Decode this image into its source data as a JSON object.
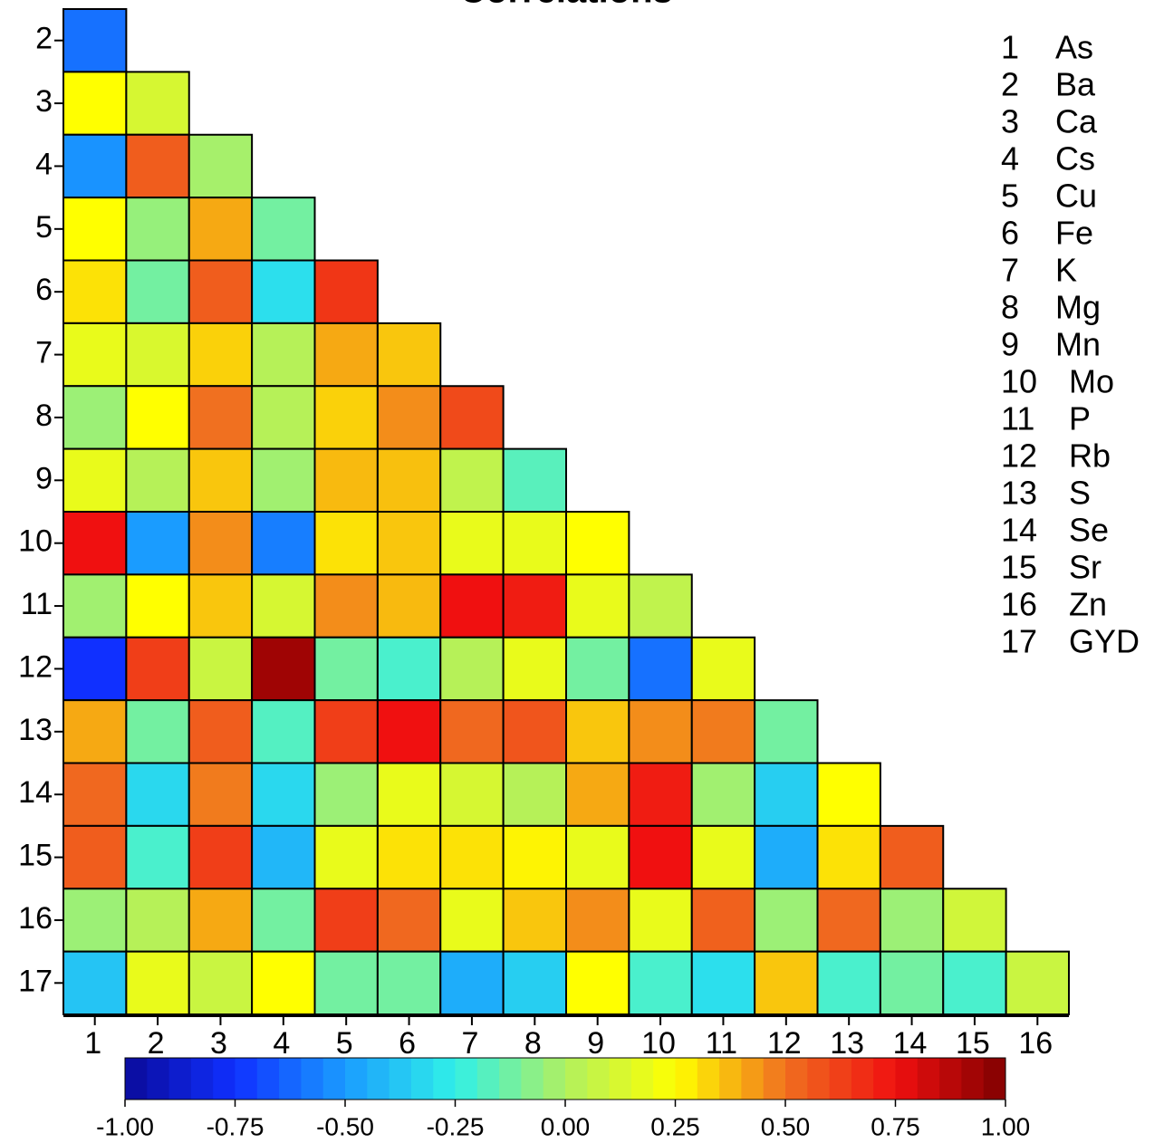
{
  "chart_data": {
    "type": "heatmap",
    "title": "Correlations",
    "row_labels": [
      "2",
      "3",
      "4",
      "5",
      "6",
      "7",
      "8",
      "9",
      "10",
      "11",
      "12",
      "13",
      "14",
      "15",
      "16",
      "17"
    ],
    "col_labels": [
      "1",
      "2",
      "3",
      "4",
      "5",
      "6",
      "7",
      "8",
      "9",
      "10",
      "11",
      "12",
      "13",
      "14",
      "15",
      "16"
    ],
    "values": [
      [
        -0.6
      ],
      [
        0.25,
        0.12
      ],
      [
        -0.52,
        0.55,
        -0.02
      ],
      [
        0.25,
        -0.05,
        0.4,
        -0.12
      ],
      [
        0.3,
        -0.12,
        0.55,
        -0.3,
        0.65
      ],
      [
        0.18,
        0.13,
        0.33,
        0.02,
        0.4,
        0.35
      ],
      [
        -0.04,
        0.25,
        0.5,
        0.02,
        0.33,
        0.45,
        0.6
      ],
      [
        0.18,
        0.02,
        0.35,
        -0.03,
        0.37,
        0.36,
        0.05,
        -0.17
      ],
      [
        0.75,
        -0.5,
        0.45,
        -0.57,
        0.3,
        0.35,
        0.18,
        0.18,
        0.25
      ],
      [
        -0.03,
        0.25,
        0.35,
        0.12,
        0.45,
        0.37,
        0.75,
        0.72,
        0.18,
        0.05
      ],
      [
        -0.75,
        0.63,
        0.08,
        0.93,
        -0.12,
        -0.2,
        0.02,
        0.18,
        -0.12,
        -0.6,
        0.18
      ],
      [
        0.4,
        -0.12,
        0.55,
        -0.18,
        0.63,
        0.75,
        0.52,
        0.57,
        0.35,
        0.45,
        0.48,
        -0.12
      ],
      [
        0.52,
        -0.32,
        0.48,
        -0.32,
        -0.04,
        0.18,
        0.12,
        0.02,
        0.4,
        0.72,
        -0.03,
        -0.35,
        0.25
      ],
      [
        0.55,
        -0.2,
        0.63,
        -0.42,
        0.18,
        0.3,
        0.3,
        0.27,
        0.18,
        0.75,
        0.18,
        -0.45,
        0.3,
        0.55
      ],
      [
        -0.04,
        0.02,
        0.4,
        -0.12,
        0.63,
        0.52,
        0.18,
        0.35,
        0.45,
        0.18,
        0.54,
        -0.04,
        0.52,
        -0.04,
        0.1
      ],
      [
        -0.38,
        0.18,
        0.08,
        0.25,
        -0.12,
        -0.12,
        -0.45,
        -0.35,
        0.25,
        -0.2,
        -0.3,
        0.35,
        -0.2,
        -0.12,
        -0.2,
        0.08
      ]
    ],
    "zlim": [
      -1,
      1
    ],
    "colors": [
      "#0a0a9a",
      "#1030ff",
      "#1a9cff",
      "#30f0e8",
      "#b0f060",
      "#ffff00",
      "#f07020",
      "#f01010",
      "#800000"
    ],
    "zticks": [
      {
        "value": -1,
        "label": "-1.00"
      },
      {
        "value": -0.75,
        "label": "-0.75"
      },
      {
        "value": -0.5,
        "label": "-0.50"
      },
      {
        "value": -0.25,
        "label": "-0.25"
      },
      {
        "value": 0,
        "label": "0.00"
      },
      {
        "value": 0.25,
        "label": "0.25"
      },
      {
        "value": 0.5,
        "label": "0.50"
      },
      {
        "value": 0.75,
        "label": "0.75"
      },
      {
        "value": 1,
        "label": "1.00"
      }
    ],
    "legend": [
      {
        "number": "1",
        "name": "As"
      },
      {
        "number": "2",
        "name": "Ba"
      },
      {
        "number": "3",
        "name": "Ca"
      },
      {
        "number": "4",
        "name": "Cs"
      },
      {
        "number": "5",
        "name": "Cu"
      },
      {
        "number": "6",
        "name": "Fe"
      },
      {
        "number": "7",
        "name": "K"
      },
      {
        "number": "8",
        "name": "Mg"
      },
      {
        "number": "9",
        "name": "Mn"
      },
      {
        "number": "10",
        "name": "Mo"
      },
      {
        "number": "11",
        "name": "P"
      },
      {
        "number": "12",
        "name": "Rb"
      },
      {
        "number": "13",
        "name": "S"
      },
      {
        "number": "14",
        "name": "Se"
      },
      {
        "number": "15",
        "name": "Sr"
      },
      {
        "number": "16",
        "name": "Zn"
      },
      {
        "number": "17",
        "name": "GYD"
      }
    ]
  }
}
